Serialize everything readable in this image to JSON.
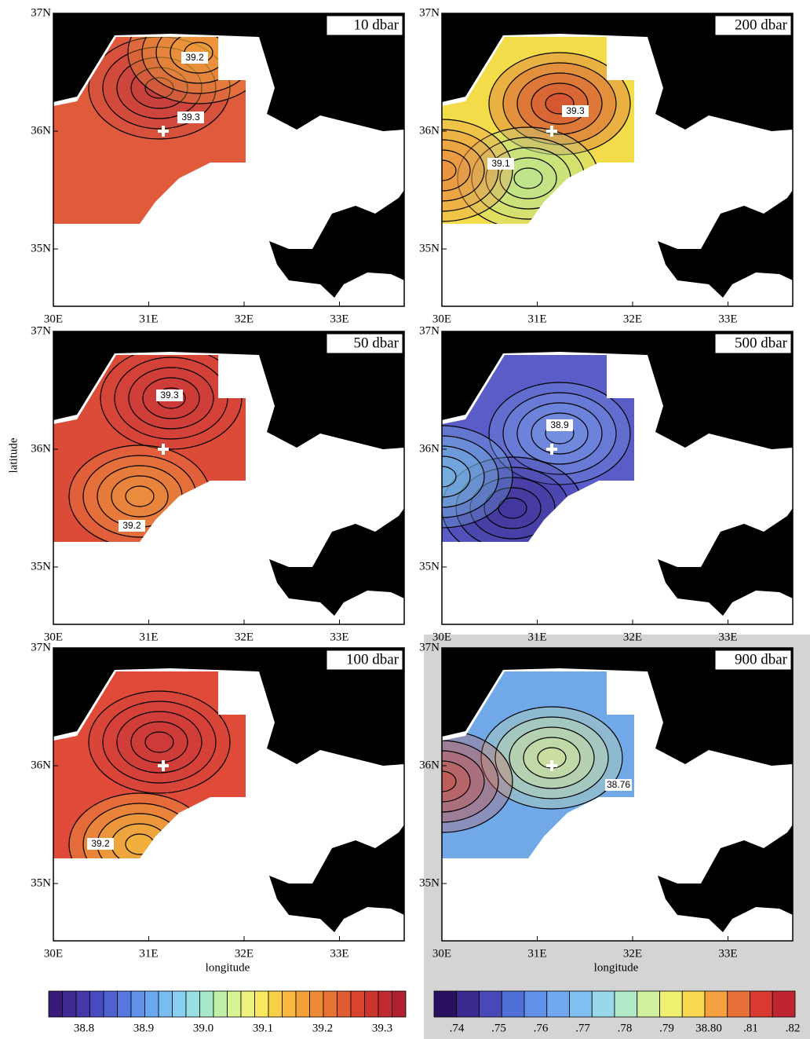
{
  "panels": [
    {
      "label": "10 dbar",
      "contour_labels": [
        "39.2",
        "39.3"
      ],
      "colors": [
        "#e05a3c",
        "#c0383a",
        "#f3b03a"
      ]
    },
    {
      "label": "200 dbar",
      "contour_labels": [
        "39.3",
        "39.1"
      ],
      "colors": [
        "#f2dc4a",
        "#d0302a",
        "#b0e8a0",
        "#e88040"
      ]
    },
    {
      "label": "50 dbar",
      "contour_labels": [
        "39.3",
        "39.2"
      ],
      "colors": [
        "#dc4a38",
        "#c8383a",
        "#f0a040"
      ]
    },
    {
      "label": "500 dbar",
      "contour_labels": [
        "38.9"
      ],
      "colors": [
        "#5a5cc8",
        "#7aa0e8",
        "#3a2a90",
        "#80c8e8"
      ]
    },
    {
      "label": "100 dbar",
      "contour_labels": [
        "39.2"
      ],
      "colors": [
        "#e04a38",
        "#c8383a",
        "#f6d040"
      ]
    },
    {
      "label": "900 dbar",
      "contour_labels": [
        "38.76"
      ],
      "colors": [
        "#70a8e8",
        "#e8f08a",
        "#d84830"
      ]
    }
  ],
  "xticks": [
    "30E",
    "31E",
    "32E",
    "33E"
  ],
  "yticks": [
    "37N",
    "36N",
    "35N"
  ],
  "xlabel": "longitude",
  "ylabel": "latitude",
  "colorbars": [
    {
      "ticks": [
        "38.8",
        "38.9",
        "39.0",
        "39.1",
        "39.2",
        "39.3"
      ],
      "colors": [
        "#3a1a78",
        "#3e2a90",
        "#4438a8",
        "#4a4ac0",
        "#4f60d0",
        "#5878e0",
        "#6090e8",
        "#6aa8f0",
        "#78bcf0",
        "#88d0f0",
        "#98e0e0",
        "#a8e8c8",
        "#c0f0a8",
        "#d8f490",
        "#eef080",
        "#f8e860",
        "#f8d048",
        "#f8b840",
        "#f4a038",
        "#ee8a36",
        "#e87234",
        "#e05a32",
        "#d84430",
        "#cc3430",
        "#c02a30",
        "#b02030"
      ]
    },
    {
      "ticks": [
        ".74",
        ".75",
        ".76",
        ".77",
        ".78",
        ".79",
        "38.80",
        ".81",
        ".82"
      ],
      "colors": [
        "#2a1060",
        "#3a2a90",
        "#4848b8",
        "#5070d8",
        "#6090e8",
        "#70a8f0",
        "#80c0f0",
        "#98d8e8",
        "#b0e8c8",
        "#d0f0a0",
        "#f0f070",
        "#f8d850",
        "#f4a040",
        "#e87038",
        "#d83a30",
        "#c02430"
      ]
    }
  ]
}
